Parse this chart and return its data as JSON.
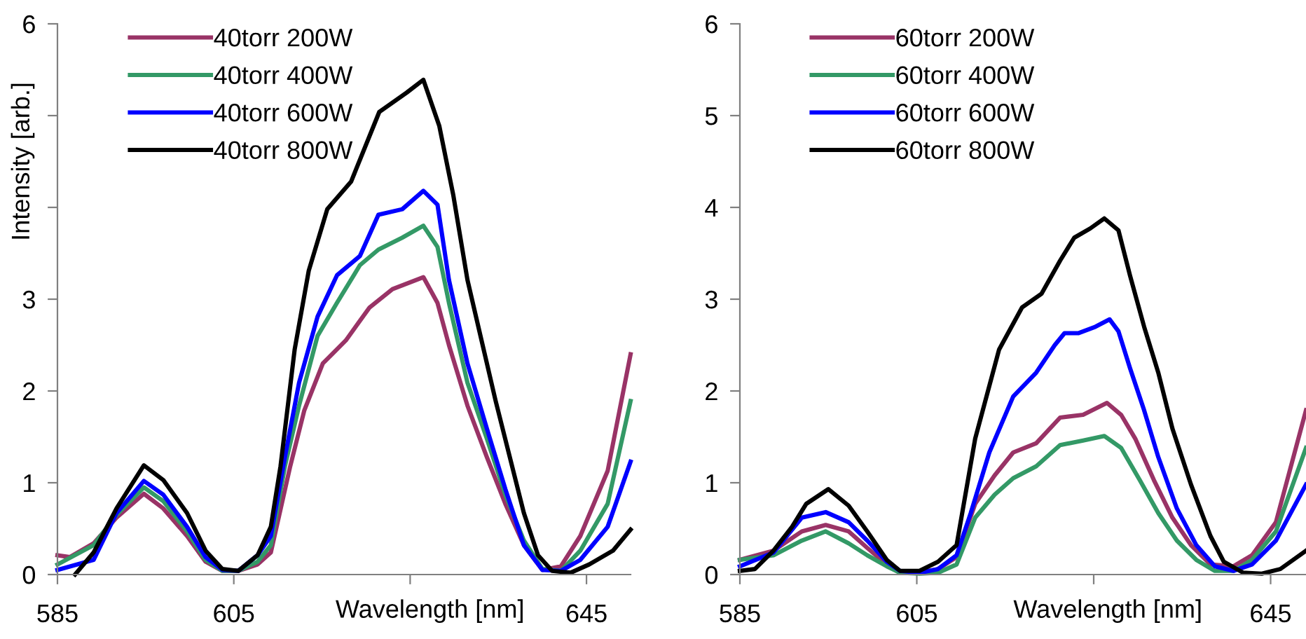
{
  "chart_data": [
    {
      "type": "line",
      "xlabel": "Wavelength [nm]",
      "ylabel": "Intensity [arb.]",
      "xlim": [
        585,
        650
      ],
      "xticks": [
        585,
        605,
        {
          "value": 625,
          "label": null
        },
        645
      ],
      "ylim": [
        0,
        6
      ],
      "yticks": [
        0,
        1,
        2,
        3,
        {
          "value": 4,
          "label": null
        },
        {
          "value": 5,
          "label": null
        },
        6
      ],
      "grid": false,
      "legend": "top left",
      "marker": "none",
      "line_style": "solid",
      "series": [
        {
          "name": "40torr 200W",
          "color": "#993366",
          "x": [
            585,
            586.4,
            589.1,
            591.7,
            594.8,
            597.0,
            599.7,
            601.8,
            603.7,
            605.5,
            607.7,
            609.2,
            611.4,
            613.0,
            615.1,
            617.7,
            620.4,
            623.0,
            626.5,
            628.1,
            629.4,
            631.5,
            633.7,
            635.8,
            637.9,
            640.0,
            642.1,
            644.3,
            647.4,
            650.0
          ],
          "values": [
            0.21,
            0.19,
            0.34,
            0.62,
            0.88,
            0.72,
            0.42,
            0.14,
            0.04,
            0.04,
            0.11,
            0.24,
            1.18,
            1.79,
            2.3,
            2.55,
            2.91,
            3.11,
            3.24,
            2.96,
            2.5,
            1.84,
            1.28,
            0.77,
            0.32,
            0.05,
            0.09,
            0.42,
            1.13,
            2.4
          ]
        },
        {
          "name": "40torr 400W",
          "color": "#339966",
          "x": [
            585,
            589.1,
            591.7,
            594.8,
            597.0,
            599.7,
            601.8,
            603.7,
            605.5,
            607.7,
            609.2,
            610.8,
            612.4,
            614.5,
            616.7,
            619.3,
            621.4,
            624.1,
            626.5,
            628.1,
            629.4,
            631.5,
            633.7,
            635.8,
            637.9,
            640.0,
            642.1,
            644.3,
            647.4,
            650.0
          ],
          "values": [
            0.11,
            0.32,
            0.65,
            0.95,
            0.8,
            0.47,
            0.16,
            0.04,
            0.04,
            0.14,
            0.32,
            1.18,
            1.84,
            2.6,
            2.96,
            3.37,
            3.54,
            3.67,
            3.8,
            3.57,
            2.96,
            2.09,
            1.48,
            0.87,
            0.37,
            0.06,
            0.04,
            0.26,
            0.77,
            1.89
          ]
        },
        {
          "name": "40torr 600W",
          "color": "#0000ff",
          "x": [
            585,
            589.1,
            591.7,
            594.8,
            597.0,
            599.7,
            601.8,
            603.7,
            605.5,
            607.7,
            609.2,
            610.8,
            612.4,
            614.5,
            616.7,
            619.3,
            621.4,
            624.1,
            626.5,
            628.1,
            629.4,
            631.5,
            633.7,
            635.8,
            637.9,
            640.0,
            642.1,
            644.3,
            647.4,
            650.0
          ],
          "values": [
            0.05,
            0.16,
            0.67,
            1.02,
            0.87,
            0.52,
            0.19,
            0.05,
            0.04,
            0.21,
            0.42,
            1.28,
            2.09,
            2.81,
            3.26,
            3.47,
            3.92,
            3.98,
            4.18,
            4.03,
            3.21,
            2.3,
            1.59,
            0.93,
            0.32,
            0.05,
            0.04,
            0.16,
            0.52,
            1.23
          ]
        },
        {
          "name": "40torr 800W",
          "color": "#000000",
          "x": [
            587.0,
            589.1,
            591.7,
            594.8,
            597.0,
            599.7,
            601.8,
            603.7,
            605.5,
            607.7,
            609.2,
            610.3,
            611.9,
            613.5,
            615.6,
            618.3,
            621.5,
            624.6,
            626.5,
            628.3,
            629.9,
            631.5,
            633.1,
            634.7,
            636.3,
            637.9,
            639.5,
            641.1,
            643.2,
            645.3,
            648.0,
            650.0
          ],
          "values": [
            0,
            0.24,
            0.72,
            1.19,
            1.03,
            0.67,
            0.26,
            0.06,
            0.04,
            0.21,
            0.52,
            1.18,
            2.45,
            3.31,
            3.98,
            4.28,
            5.04,
            5.25,
            5.39,
            4.89,
            4.13,
            3.21,
            2.55,
            1.89,
            1.28,
            0.67,
            0.21,
            0.04,
            0.02,
            0.11,
            0.26,
            0.49
          ]
        }
      ]
    },
    {
      "type": "line",
      "xlabel": "Wavelength [nm]",
      "xlim": [
        585,
        649
      ],
      "xticks": [
        585,
        605,
        {
          "value": 625,
          "label": null
        },
        645
      ],
      "ylim": [
        0,
        6
      ],
      "yticks": [
        0,
        1,
        2,
        3,
        4,
        5,
        6
      ],
      "grid": false,
      "legend": "top left",
      "marker": "none",
      "line_style": "solid",
      "series": [
        {
          "name": "60torr 200W",
          "color": "#993366",
          "x": [
            585,
            588.8,
            592.0,
            594.7,
            597.3,
            599.4,
            601.6,
            603.1,
            605.3,
            607.4,
            609.5,
            611.6,
            613.8,
            615.9,
            618.5,
            621.2,
            623.8,
            626.5,
            628.1,
            629.7,
            631.8,
            633.9,
            636.0,
            638.2,
            640.8,
            642.9,
            645.6,
            649.0
          ],
          "values": [
            0.16,
            0.26,
            0.47,
            0.54,
            0.47,
            0.29,
            0.11,
            0.02,
            0.02,
            0.06,
            0.19,
            0.77,
            1.08,
            1.33,
            1.43,
            1.71,
            1.74,
            1.87,
            1.74,
            1.48,
            1.03,
            0.62,
            0.32,
            0.11,
            0.09,
            0.21,
            0.57,
            1.79
          ]
        },
        {
          "name": "60torr 400W",
          "color": "#339966",
          "x": [
            585,
            588.8,
            592.0,
            594.7,
            597.3,
            599.4,
            601.6,
            603.1,
            605.3,
            607.4,
            609.5,
            611.6,
            613.8,
            615.9,
            618.5,
            621.2,
            623.8,
            626.2,
            628.1,
            630.2,
            632.3,
            634.4,
            636.6,
            638.7,
            640.8,
            642.9,
            645.6,
            649.0
          ],
          "values": [
            0.16,
            0.21,
            0.37,
            0.47,
            0.34,
            0.21,
            0.09,
            0.02,
            0.01,
            0.02,
            0.11,
            0.62,
            0.87,
            1.05,
            1.18,
            1.41,
            1.46,
            1.51,
            1.38,
            1.03,
            0.67,
            0.37,
            0.16,
            0.04,
            0.04,
            0.16,
            0.47,
            1.38
          ]
        },
        {
          "name": "60torr 600W",
          "color": "#0000ff",
          "x": [
            585,
            588.8,
            592.0,
            594.7,
            597.3,
            599.4,
            601.6,
            603.1,
            605.3,
            607.4,
            609.5,
            611.1,
            613.2,
            615.9,
            618.5,
            620.6,
            621.7,
            623.3,
            625.2,
            626.8,
            627.8,
            629.1,
            630.7,
            632.3,
            634.4,
            636.6,
            638.7,
            640.8,
            642.9,
            645.6,
            649.0
          ],
          "values": [
            0.09,
            0.24,
            0.62,
            0.68,
            0.57,
            0.37,
            0.14,
            0.04,
            0.02,
            0.06,
            0.21,
            0.67,
            1.33,
            1.94,
            2.2,
            2.5,
            2.63,
            2.63,
            2.7,
            2.78,
            2.65,
            2.25,
            1.79,
            1.28,
            0.72,
            0.32,
            0.09,
            0.04,
            0.11,
            0.37,
            0.98
          ]
        },
        {
          "name": "60torr 800W",
          "color": "#000000",
          "x": [
            585,
            586.7,
            588.8,
            590.9,
            592.5,
            595.0,
            597.3,
            599.4,
            601.6,
            603.1,
            605.3,
            607.4,
            609.5,
            611.6,
            614.3,
            616.9,
            619.1,
            621.2,
            622.8,
            624.6,
            626.2,
            627.8,
            629.1,
            630.7,
            632.3,
            633.9,
            636.0,
            638.2,
            639.7,
            641.9,
            644.0,
            646.1,
            649.0
          ],
          "values": [
            0.04,
            0.06,
            0.26,
            0.52,
            0.77,
            0.93,
            0.75,
            0.47,
            0.16,
            0.04,
            0.04,
            0.14,
            0.32,
            1.48,
            2.45,
            2.91,
            3.06,
            3.42,
            3.67,
            3.77,
            3.88,
            3.75,
            3.26,
            2.7,
            2.2,
            1.59,
            0.98,
            0.42,
            0.14,
            0.02,
            0.01,
            0.06,
            0.26
          ]
        }
      ]
    }
  ]
}
